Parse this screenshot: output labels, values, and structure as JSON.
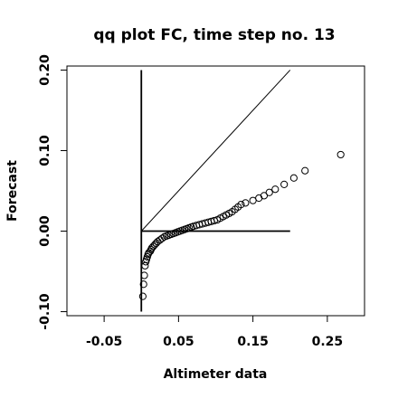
{
  "chart_data": {
    "type": "scatter",
    "title": "qq plot FC, time step no. 13",
    "xlabel": "Altimeter data",
    "ylabel": "Forecast",
    "xlim": [
      -0.1,
      0.3
    ],
    "ylim": [
      -0.105,
      0.205
    ],
    "x_ticks": [
      -0.05,
      0.05,
      0.15,
      0.25
    ],
    "x_tick_labels": [
      "-0.05",
      "0.05",
      "0.15",
      "0.25"
    ],
    "y_ticks": [
      -0.1,
      0.0,
      0.1,
      0.2
    ],
    "y_tick_labels": [
      "-0.10",
      "0.00",
      "0.10",
      "0.20"
    ],
    "grid": false,
    "marker": "open-circle",
    "reference_lines": [
      {
        "name": "",
        "x": [
          0,
          0.2
        ],
        "y": [
          0,
          0.2
        ]
      },
      {
        "name": "",
        "x": [
          0,
          0.2
        ],
        "y": [
          0,
          0
        ]
      },
      {
        "name": "",
        "x": [
          0,
          0
        ],
        "y": [
          -0.1,
          0.2
        ]
      }
    ],
    "points": [
      [
        0.002,
        -0.081
      ],
      [
        0.003,
        -0.066
      ],
      [
        0.004,
        -0.055
      ],
      [
        0.005,
        -0.043
      ],
      [
        0.006,
        -0.038
      ],
      [
        0.007,
        -0.035
      ],
      [
        0.008,
        -0.032
      ],
      [
        0.009,
        -0.029
      ],
      [
        0.01,
        -0.027
      ],
      [
        0.012,
        -0.025
      ],
      [
        0.013,
        -0.023
      ],
      [
        0.014,
        -0.021
      ],
      [
        0.016,
        -0.019
      ],
      [
        0.018,
        -0.017
      ],
      [
        0.02,
        -0.015
      ],
      [
        0.022,
        -0.013
      ],
      [
        0.025,
        -0.011
      ],
      [
        0.028,
        -0.009
      ],
      [
        0.031,
        -0.007
      ],
      [
        0.034,
        -0.006
      ],
      [
        0.037,
        -0.005
      ],
      [
        0.04,
        -0.004
      ],
      [
        0.043,
        -0.003
      ],
      [
        0.046,
        -0.002
      ],
      [
        0.049,
        -0.001
      ],
      [
        0.052,
        0.0
      ],
      [
        0.055,
        0.001
      ],
      [
        0.058,
        0.002
      ],
      [
        0.061,
        0.003
      ],
      [
        0.064,
        0.004
      ],
      [
        0.067,
        0.005
      ],
      [
        0.07,
        0.006
      ],
      [
        0.074,
        0.007
      ],
      [
        0.078,
        0.008
      ],
      [
        0.082,
        0.009
      ],
      [
        0.086,
        0.01
      ],
      [
        0.09,
        0.011
      ],
      [
        0.094,
        0.012
      ],
      [
        0.098,
        0.013
      ],
      [
        0.102,
        0.014
      ],
      [
        0.106,
        0.016
      ],
      [
        0.11,
        0.018
      ],
      [
        0.114,
        0.02
      ],
      [
        0.118,
        0.022
      ],
      [
        0.122,
        0.024
      ],
      [
        0.126,
        0.027
      ],
      [
        0.13,
        0.03
      ],
      [
        0.134,
        0.033
      ],
      [
        0.14,
        0.035
      ],
      [
        0.15,
        0.038
      ],
      [
        0.158,
        0.041
      ],
      [
        0.165,
        0.044
      ],
      [
        0.172,
        0.048
      ],
      [
        0.18,
        0.052
      ],
      [
        0.192,
        0.058
      ],
      [
        0.205,
        0.066
      ],
      [
        0.22,
        0.075
      ],
      [
        0.268,
        0.095
      ]
    ]
  }
}
